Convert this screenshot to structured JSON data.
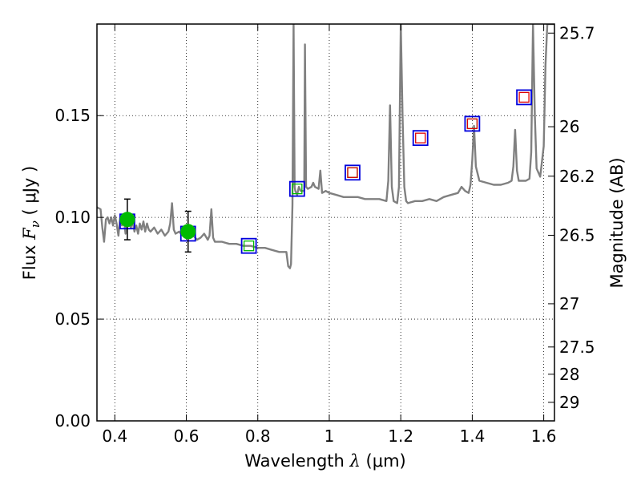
{
  "chart_data": {
    "type": "scatter",
    "xlabel_prefix": "Wavelength",
    "xlabel_symbol": "λ",
    "xlabel_unit": "(μm)",
    "ylabel_prefix": "Flux",
    "ylabel_symbol": "F",
    "ylabel_sub": "ν",
    "ylabel_unit": "( μJy )",
    "y2label": "Magnitude (AB)",
    "xlim": [
      0.35,
      1.63
    ],
    "ylim": [
      0.0,
      0.195
    ],
    "grid": true,
    "grid_style": "dotted",
    "x_ticks": [
      0.4,
      0.6,
      0.8,
      1.0,
      1.2,
      1.4,
      1.6
    ],
    "x_tick_labels": [
      "0.4",
      "0.6",
      "0.8",
      "1",
      "1.2",
      "1.4",
      "1.6"
    ],
    "y_ticks": [
      0.0,
      0.05,
      0.1,
      0.15
    ],
    "y_tick_labels": [
      "0.00",
      "0.05",
      "0.10",
      "0.15"
    ],
    "y2_ticks": [
      {
        "mag": 25.7,
        "label": "25.7"
      },
      {
        "mag": 26.0,
        "label": "26"
      },
      {
        "mag": 26.2,
        "label": "26.2"
      },
      {
        "mag": 26.5,
        "label": "26.5"
      },
      {
        "mag": 27.0,
        "label": "27"
      },
      {
        "mag": 27.5,
        "label": "27.5"
      },
      {
        "mag": 28.0,
        "label": "28"
      },
      {
        "mag": 29.0,
        "label": "29"
      }
    ],
    "colors": {
      "template": "#808080",
      "detection": "#00bb00",
      "model_box": "#0000dd",
      "green_box": "#00bb00",
      "red_box": "#dd0000",
      "errorbar": "#000000"
    },
    "series": [
      {
        "kind": "template",
        "points": [
          [
            0.35,
            0.105
          ],
          [
            0.36,
            0.104
          ],
          [
            0.365,
            0.095
          ],
          [
            0.37,
            0.088
          ],
          [
            0.375,
            0.099
          ],
          [
            0.38,
            0.1
          ],
          [
            0.385,
            0.097
          ],
          [
            0.39,
            0.1
          ],
          [
            0.395,
            0.096
          ],
          [
            0.4,
            0.101
          ],
          [
            0.405,
            0.097
          ],
          [
            0.41,
            0.091
          ],
          [
            0.415,
            0.1
          ],
          [
            0.42,
            0.096
          ],
          [
            0.425,
            0.099
          ],
          [
            0.43,
            0.092
          ],
          [
            0.435,
            0.1
          ],
          [
            0.44,
            0.097
          ],
          [
            0.445,
            0.095
          ],
          [
            0.45,
            0.098
          ],
          [
            0.455,
            0.093
          ],
          [
            0.46,
            0.096
          ],
          [
            0.465,
            0.092
          ],
          [
            0.47,
            0.097
          ],
          [
            0.475,
            0.094
          ],
          [
            0.48,
            0.098
          ],
          [
            0.485,
            0.093
          ],
          [
            0.49,
            0.097
          ],
          [
            0.495,
            0.094
          ],
          [
            0.5,
            0.093
          ],
          [
            0.51,
            0.095
          ],
          [
            0.52,
            0.092
          ],
          [
            0.53,
            0.094
          ],
          [
            0.54,
            0.091
          ],
          [
            0.55,
            0.093
          ],
          [
            0.555,
            0.097
          ],
          [
            0.56,
            0.107
          ],
          [
            0.565,
            0.094
          ],
          [
            0.57,
            0.092
          ],
          [
            0.58,
            0.093
          ],
          [
            0.59,
            0.091
          ],
          [
            0.6,
            0.092
          ],
          [
            0.61,
            0.09
          ],
          [
            0.62,
            0.091
          ],
          [
            0.63,
            0.089
          ],
          [
            0.64,
            0.09
          ],
          [
            0.65,
            0.092
          ],
          [
            0.66,
            0.089
          ],
          [
            0.665,
            0.091
          ],
          [
            0.67,
            0.104
          ],
          [
            0.675,
            0.09
          ],
          [
            0.68,
            0.088
          ],
          [
            0.7,
            0.088
          ],
          [
            0.72,
            0.087
          ],
          [
            0.74,
            0.087
          ],
          [
            0.76,
            0.086
          ],
          [
            0.78,
            0.086
          ],
          [
            0.8,
            0.085
          ],
          [
            0.82,
            0.085
          ],
          [
            0.84,
            0.084
          ],
          [
            0.86,
            0.083
          ],
          [
            0.88,
            0.083
          ],
          [
            0.885,
            0.076
          ],
          [
            0.89,
            0.075
          ],
          [
            0.893,
            0.077
          ],
          [
            0.897,
            0.106
          ],
          [
            0.9,
            0.195
          ],
          [
            0.903,
            0.115
          ],
          [
            0.905,
            0.113
          ],
          [
            0.91,
            0.111
          ],
          [
            0.915,
            0.115
          ],
          [
            0.92,
            0.113
          ],
          [
            0.93,
            0.113
          ],
          [
            0.932,
            0.185
          ],
          [
            0.935,
            0.115
          ],
          [
            0.94,
            0.114
          ],
          [
            0.95,
            0.115
          ],
          [
            0.955,
            0.117
          ],
          [
            0.96,
            0.115
          ],
          [
            0.97,
            0.114
          ],
          [
            0.975,
            0.123
          ],
          [
            0.98,
            0.112
          ],
          [
            0.99,
            0.113
          ],
          [
            1.0,
            0.112
          ],
          [
            1.02,
            0.111
          ],
          [
            1.04,
            0.11
          ],
          [
            1.06,
            0.11
          ],
          [
            1.08,
            0.11
          ],
          [
            1.1,
            0.109
          ],
          [
            1.12,
            0.109
          ],
          [
            1.14,
            0.109
          ],
          [
            1.16,
            0.108
          ],
          [
            1.165,
            0.118
          ],
          [
            1.17,
            0.155
          ],
          [
            1.175,
            0.115
          ],
          [
            1.18,
            0.108
          ],
          [
            1.19,
            0.107
          ],
          [
            1.195,
            0.115
          ],
          [
            1.2,
            0.195
          ],
          [
            1.205,
            0.15
          ],
          [
            1.21,
            0.115
          ],
          [
            1.215,
            0.108
          ],
          [
            1.22,
            0.107
          ],
          [
            1.24,
            0.108
          ],
          [
            1.26,
            0.108
          ],
          [
            1.28,
            0.109
          ],
          [
            1.3,
            0.108
          ],
          [
            1.32,
            0.11
          ],
          [
            1.34,
            0.111
          ],
          [
            1.36,
            0.112
          ],
          [
            1.37,
            0.115
          ],
          [
            1.38,
            0.113
          ],
          [
            1.39,
            0.112
          ],
          [
            1.395,
            0.116
          ],
          [
            1.4,
            0.128
          ],
          [
            1.405,
            0.145
          ],
          [
            1.41,
            0.125
          ],
          [
            1.42,
            0.118
          ],
          [
            1.44,
            0.117
          ],
          [
            1.46,
            0.116
          ],
          [
            1.48,
            0.116
          ],
          [
            1.5,
            0.117
          ],
          [
            1.51,
            0.118
          ],
          [
            1.515,
            0.125
          ],
          [
            1.52,
            0.143
          ],
          [
            1.525,
            0.123
          ],
          [
            1.53,
            0.118
          ],
          [
            1.54,
            0.118
          ],
          [
            1.55,
            0.118
          ],
          [
            1.56,
            0.119
          ],
          [
            1.565,
            0.132
          ],
          [
            1.57,
            0.195
          ],
          [
            1.575,
            0.15
          ],
          [
            1.58,
            0.124
          ],
          [
            1.59,
            0.12
          ],
          [
            1.6,
            0.135
          ],
          [
            1.605,
            0.175
          ],
          [
            1.61,
            0.195
          ],
          [
            1.62,
            0.195
          ],
          [
            1.63,
            0.195
          ]
        ]
      },
      {
        "kind": "model_boxes",
        "points": [
          [
            0.435,
            0.098
          ],
          [
            0.605,
            0.092
          ],
          [
            0.775,
            0.086
          ],
          [
            0.91,
            0.114
          ],
          [
            1.065,
            0.122
          ],
          [
            1.255,
            0.139
          ],
          [
            1.4,
            0.146
          ],
          [
            1.545,
            0.159
          ]
        ]
      },
      {
        "kind": "green_boxes",
        "points": [
          [
            0.775,
            0.086
          ],
          [
            0.91,
            0.114
          ],
          [
            1.065,
            0.122
          ],
          [
            1.4,
            0.146
          ]
        ]
      },
      {
        "kind": "red_boxes",
        "points": [
          [
            1.065,
            0.122
          ],
          [
            1.255,
            0.139
          ],
          [
            1.4,
            0.146
          ],
          [
            1.545,
            0.159
          ]
        ]
      },
      {
        "kind": "detections",
        "points": [
          {
            "x": 0.435,
            "y": 0.099,
            "err": 0.01
          },
          {
            "x": 0.605,
            "y": 0.093,
            "err": 0.01
          }
        ]
      }
    ]
  }
}
